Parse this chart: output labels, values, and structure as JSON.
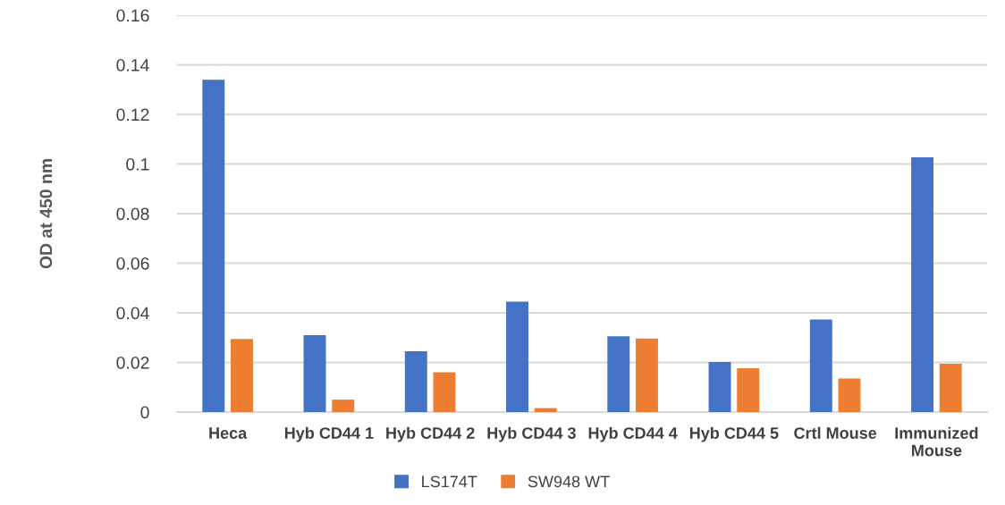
{
  "chart_data": {
    "type": "bar",
    "ylabel": "OD at 450 nm",
    "categories": [
      "Heca",
      "Hyb CD44 1",
      "Hyb CD44 2",
      "Hyb CD44 3",
      "Hyb CD44 4",
      "Hyb CD44 5",
      "Crtl Mouse",
      "Immunized\nMouse"
    ],
    "series": [
      {
        "name": "LS174T",
        "color": "#4472c4",
        "values": [
          0.134,
          0.031,
          0.0245,
          0.0445,
          0.0305,
          0.0202,
          0.0373,
          0.1027
        ]
      },
      {
        "name": "SW948 WT",
        "color": "#ed7d31",
        "values": [
          0.0295,
          0.005,
          0.016,
          0.0016,
          0.0296,
          0.0177,
          0.0135,
          0.0195
        ]
      }
    ],
    "ylim": [
      0,
      0.16
    ],
    "yticks": [
      0,
      0.02,
      0.04,
      0.06,
      0.08,
      0.1,
      0.12,
      0.14,
      0.16
    ],
    "grid": "y",
    "legend": "bottom"
  }
}
